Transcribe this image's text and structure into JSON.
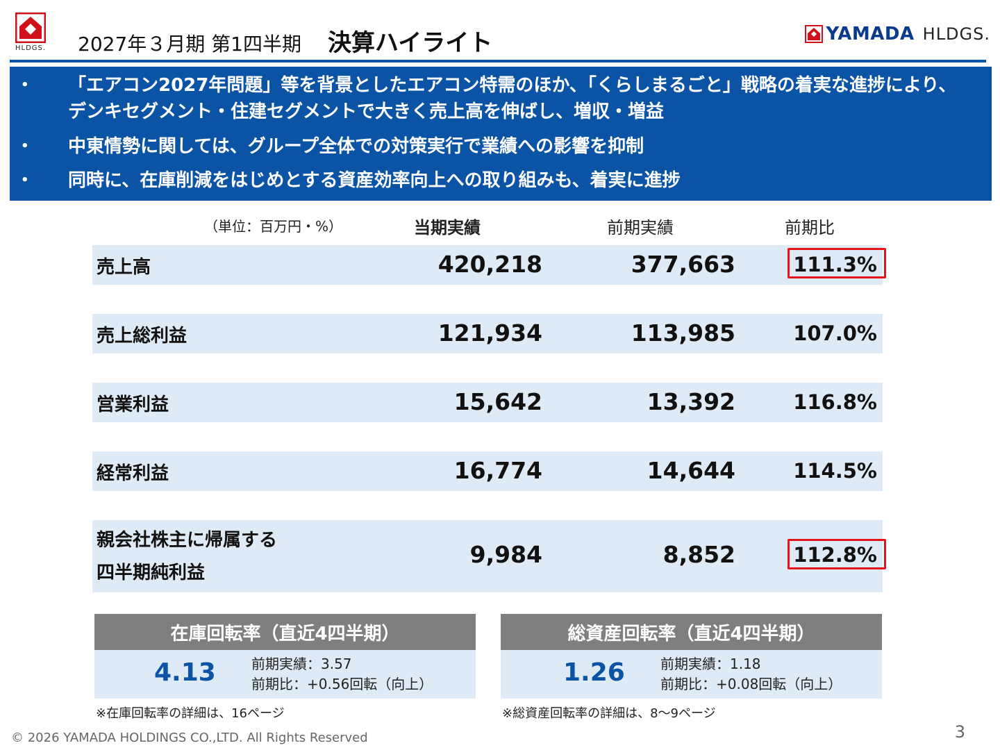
{
  "header": {
    "logo_label": "HLDGS.",
    "title_period": "2027年３月期 第1四半期",
    "title_main": "決算ハイライト",
    "brand_name": "YAMADA",
    "brand_suffix": "HLDGS."
  },
  "banner": {
    "bullets": [
      {
        "lines": [
          "「エアコン2027年問題」等を背景としたエアコン特需のほか、「くらしまるごと」戦略の着実な進捗により、",
          "デンキセグメント・住建セグメントで大きく売上高を伸ばし、増収・増益"
        ]
      },
      {
        "lines": [
          "中東情勢に関しては、グループ全体での対策実行で業績への影響を抑制"
        ]
      },
      {
        "lines": [
          "同時に、在庫削減をはじめとする資産効率向上への取り組みも、着実に進捗"
        ]
      }
    ]
  },
  "table": {
    "unit": "（単位：百万円・%）",
    "col_current": "当期実績",
    "col_previous": "前期実績",
    "col_ratio": "前期比",
    "rows": [
      {
        "label": "売上高",
        "current": "420,218",
        "previous": "377,663",
        "ratio": "111.3%"
      },
      {
        "label": "売上総利益",
        "current": "121,934",
        "previous": "113,985",
        "ratio": "107.0%"
      },
      {
        "label": "営業利益",
        "current": "15,642",
        "previous": "13,392",
        "ratio": "116.8%"
      },
      {
        "label": "経常利益",
        "current": "16,774",
        "previous": "14,644",
        "ratio": "114.5%"
      },
      {
        "label_line1": "親会社株主に帰属する",
        "label_line2": "四半期純利益",
        "current": "9,984",
        "previous": "8,852",
        "ratio": "112.8%"
      }
    ]
  },
  "kpis": [
    {
      "title": "在庫回転率（直近4四半期）",
      "value": "4.13",
      "prev": "前期実績：3.57",
      "diff": "前期比：+0.56回転（向上）",
      "note": "※在庫回転率の詳細は、16ページ"
    },
    {
      "title": "総資産回転率（直近4四半期）",
      "value": "1.26",
      "prev": "前期実績：1.18",
      "diff": "前期比：+0.08回転（向上）",
      "note": "※総資産回転率の詳細は、8～9ページ"
    }
  ],
  "footer": {
    "copyright": "© 2026 YAMADA HOLDINGS CO.,LTD. All Rights Reserved",
    "page": "3"
  },
  "colors": {
    "banner": "#0b53a5",
    "row_bg": "#deeaf6",
    "highlight": "#e5141b",
    "kpi_head": "#7f7f7f",
    "kpi_value": "#0b53a5"
  }
}
